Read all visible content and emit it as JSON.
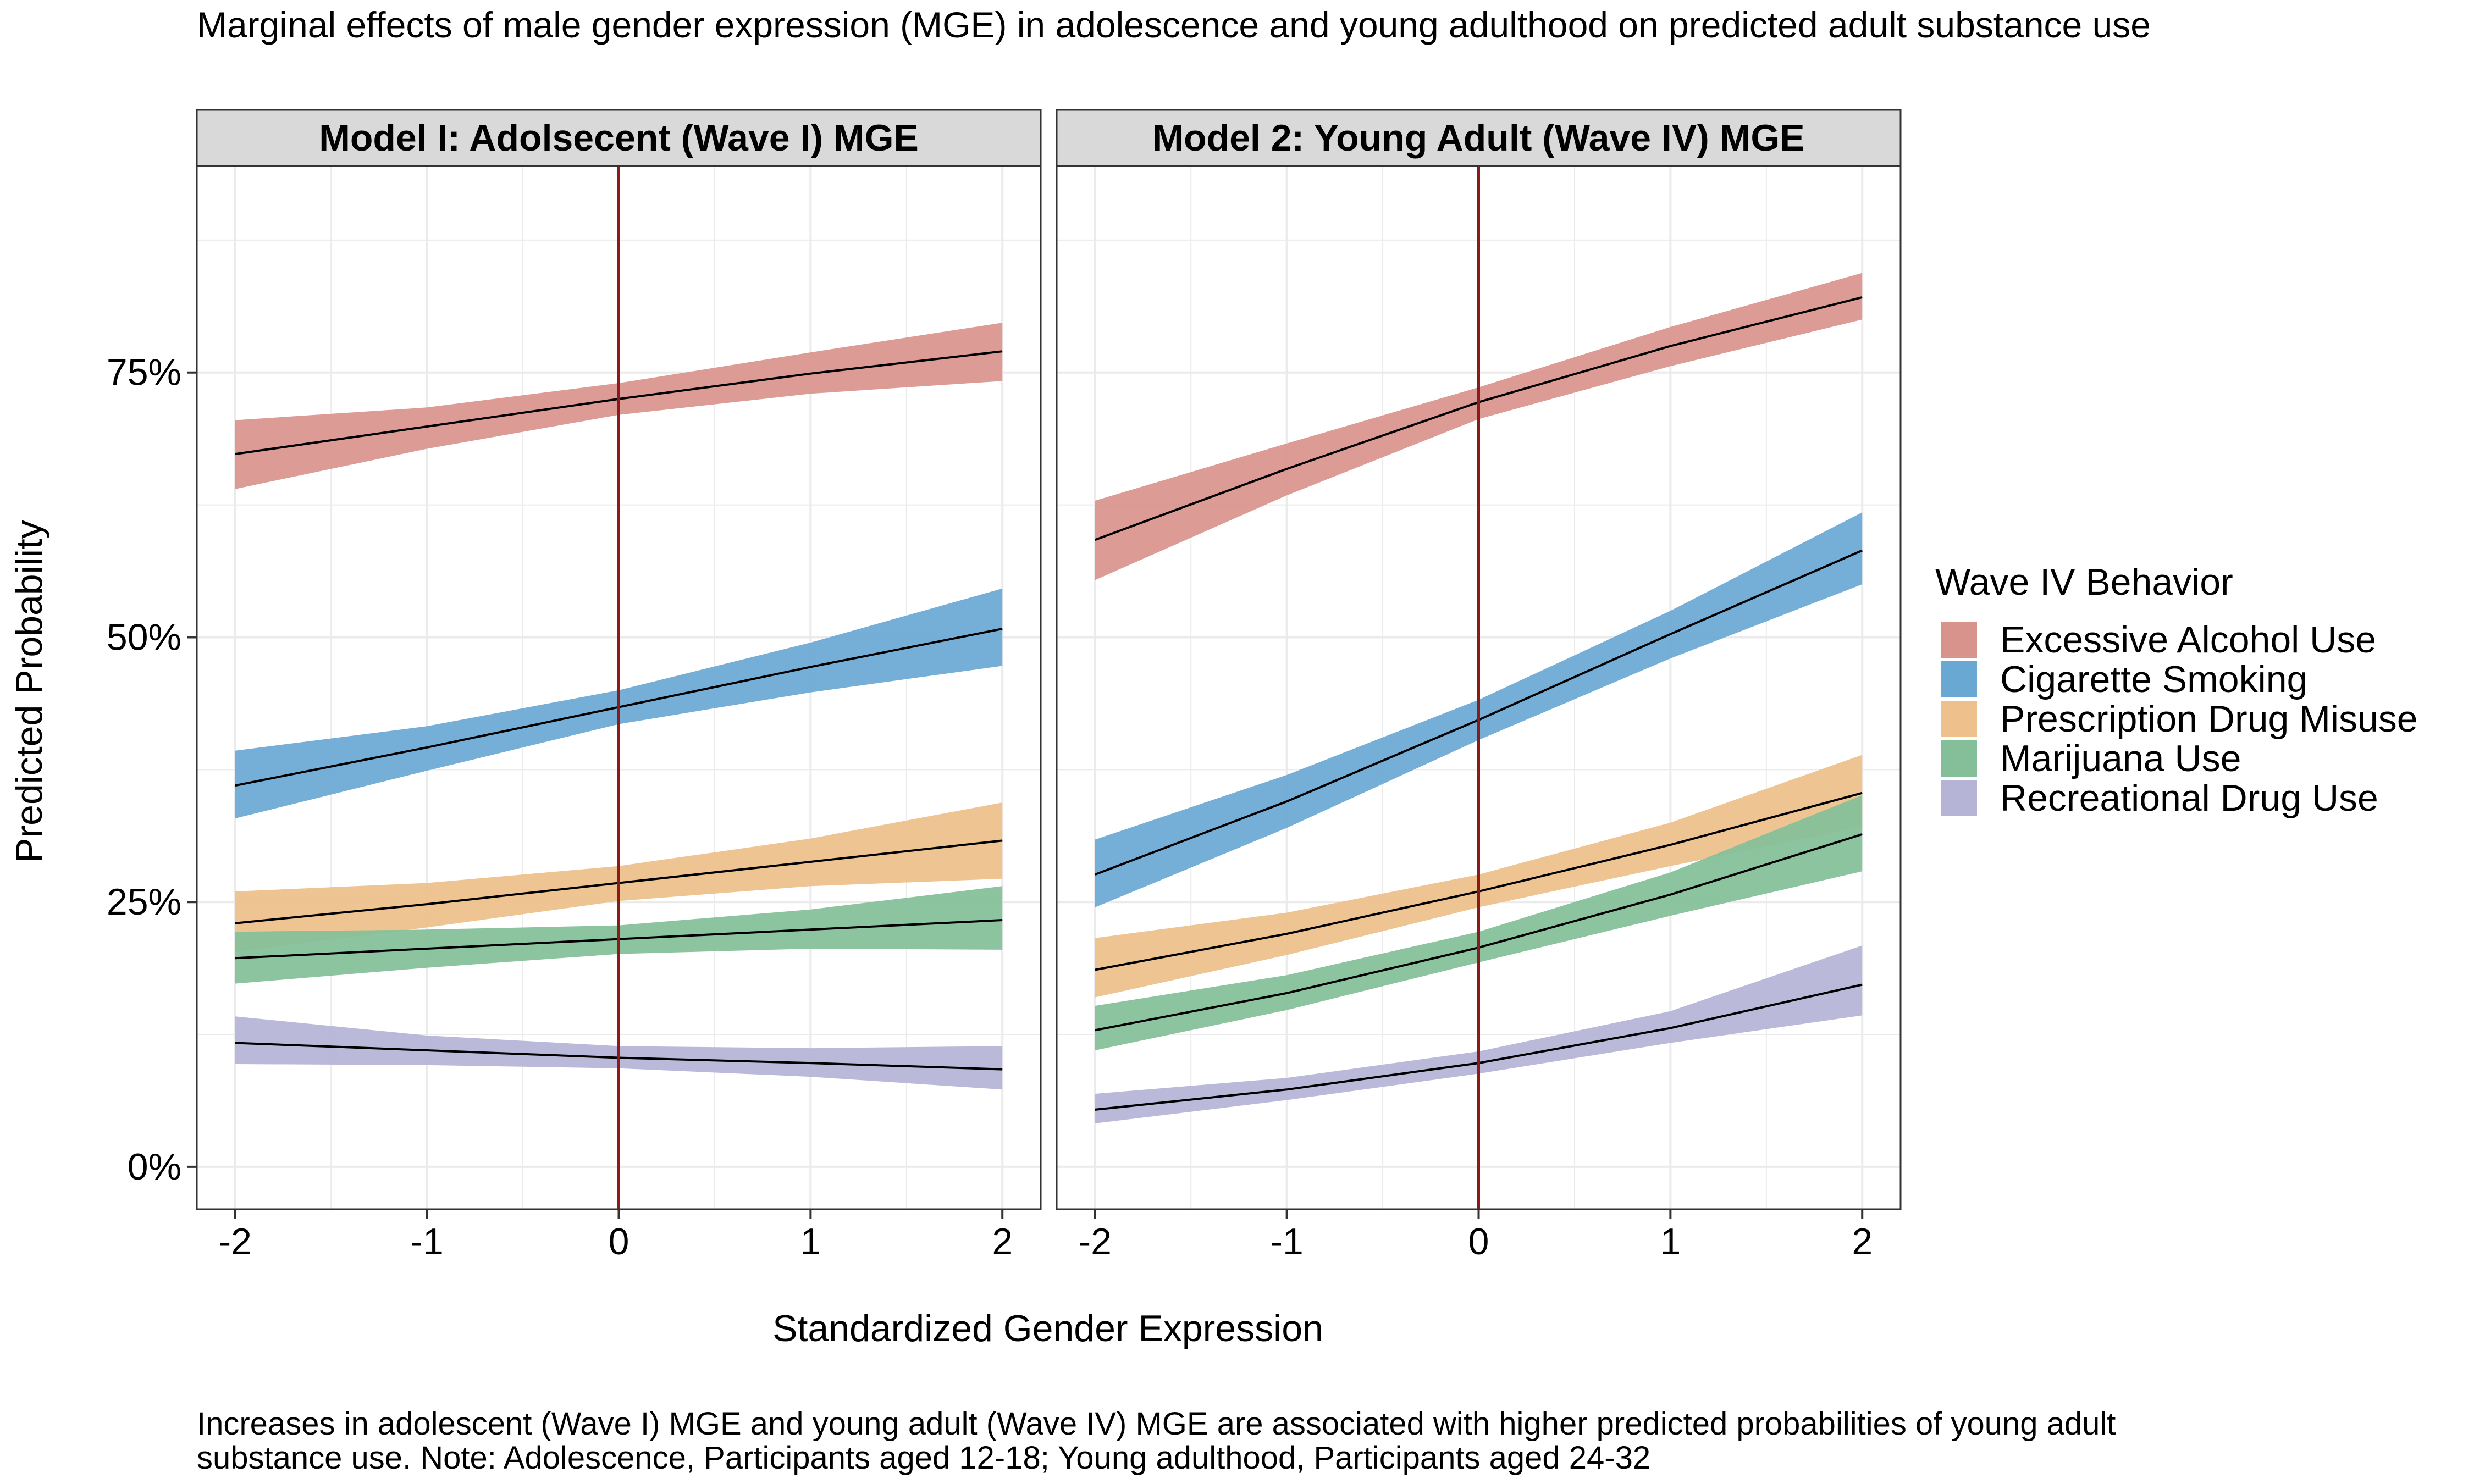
{
  "title": "Marginal effects of male gender expression (MGE) in adolescence and young adulthood on predicted adult substance use",
  "caption_lines": [
    "Increases in adolescent (Wave I) MGE and young adult (Wave IV) MGE are associated with higher predicted probabilities of young adult",
    "substance use. Note: Adolescence, Participants aged 12-18; Young adulthood, Participants aged 24-32"
  ],
  "ylabel": "Predicted Probability",
  "xlabel": "Standardized Gender Expression",
  "legend": {
    "title": "Wave IV Behavior",
    "placement": "right"
  },
  "colors": {
    "Excessive Alcohol Use": "#d9938d",
    "Cigarette Smoking": "#6aa8d4",
    "Prescription Drug Misuse": "#eec08b",
    "Marijuana Use": "#84bf99",
    "Recreational Drug Use": "#b6b4d6",
    "reference_line": "#8b1a1a",
    "strip_fill": "#d9d9d9"
  },
  "chart_data": {
    "type": "area",
    "x_ticks": [
      -2,
      -1,
      0,
      1,
      2
    ],
    "xlim": [
      -2.2,
      2.2
    ],
    "y_ticks": [
      0,
      0.25,
      0.5,
      0.75
    ],
    "y_tick_labels": [
      "0%",
      "25%",
      "50%",
      "75%"
    ],
    "ylim": [
      -0.04,
      0.945
    ],
    "reference_x": 0,
    "grid": true,
    "legend_entries": [
      "Excessive Alcohol Use",
      "Cigarette Smoking",
      "Prescription Drug Misuse",
      "Marijuana Use",
      "Recreational Drug Use"
    ],
    "panels": [
      {
        "title": "Model I: Adolsecent (Wave I) MGE",
        "x": [
          -2,
          -1,
          0,
          1,
          2
        ],
        "series": [
          {
            "name": "Excessive Alcohol Use",
            "fit": [
              0.673,
              0.699,
              0.725,
              0.749,
              0.77
            ],
            "lower": [
              0.64,
              0.678,
              0.71,
              0.73,
              0.742
            ],
            "upper": [
              0.705,
              0.717,
              0.74,
              0.769,
              0.797
            ]
          },
          {
            "name": "Cigarette Smoking",
            "fit": [
              0.36,
              0.396,
              0.434,
              0.472,
              0.508
            ],
            "lower": [
              0.329,
              0.374,
              0.418,
              0.448,
              0.473
            ],
            "upper": [
              0.393,
              0.416,
              0.45,
              0.495,
              0.546
            ]
          },
          {
            "name": "Prescription Drug Misuse",
            "fit": [
              0.23,
              0.248,
              0.268,
              0.288,
              0.308
            ],
            "lower": [
              0.203,
              0.226,
              0.251,
              0.265,
              0.272
            ],
            "upper": [
              0.26,
              0.268,
              0.284,
              0.31,
              0.344
            ]
          },
          {
            "name": "Marijuana Use",
            "fit": [
              0.197,
              0.206,
              0.215,
              0.224,
              0.233
            ],
            "lower": [
              0.173,
              0.188,
              0.201,
              0.206,
              0.205
            ],
            "upper": [
              0.222,
              0.224,
              0.228,
              0.243,
              0.265
            ]
          },
          {
            "name": "Recreational Drug Use",
            "fit": [
              0.117,
              0.11,
              0.103,
              0.098,
              0.092
            ],
            "lower": [
              0.097,
              0.096,
              0.093,
              0.085,
              0.073
            ],
            "upper": [
              0.142,
              0.124,
              0.114,
              0.112,
              0.114
            ]
          }
        ]
      },
      {
        "title": "Model 2: Young Adult (Wave IV) MGE",
        "x": [
          -2,
          -1,
          0,
          1,
          2
        ],
        "series": [
          {
            "name": "Excessive Alcohol Use",
            "fit": [
              0.592,
              0.659,
              0.722,
              0.775,
              0.821
            ],
            "lower": [
              0.554,
              0.634,
              0.706,
              0.756,
              0.8
            ],
            "upper": [
              0.629,
              0.683,
              0.736,
              0.793,
              0.844
            ]
          },
          {
            "name": "Cigarette Smoking",
            "fit": [
              0.276,
              0.345,
              0.422,
              0.503,
              0.582
            ],
            "lower": [
              0.245,
              0.32,
              0.403,
              0.48,
              0.55
            ],
            "upper": [
              0.309,
              0.37,
              0.441,
              0.525,
              0.618
            ]
          },
          {
            "name": "Prescription Drug Misuse",
            "fit": [
              0.186,
              0.22,
              0.26,
              0.304,
              0.353
            ],
            "lower": [
              0.16,
              0.2,
              0.245,
              0.284,
              0.321
            ],
            "upper": [
              0.216,
              0.24,
              0.276,
              0.325,
              0.389
            ]
          },
          {
            "name": "Marijuana Use",
            "fit": [
              0.129,
              0.164,
              0.207,
              0.257,
              0.314
            ],
            "lower": [
              0.11,
              0.148,
              0.193,
              0.237,
              0.279
            ],
            "upper": [
              0.152,
              0.181,
              0.222,
              0.278,
              0.351
            ]
          },
          {
            "name": "Recreational Drug Use",
            "fit": [
              0.054,
              0.073,
              0.098,
              0.131,
              0.172
            ],
            "lower": [
              0.041,
              0.063,
              0.088,
              0.117,
              0.143
            ],
            "upper": [
              0.069,
              0.084,
              0.109,
              0.147,
              0.209
            ]
          }
        ]
      }
    ]
  }
}
